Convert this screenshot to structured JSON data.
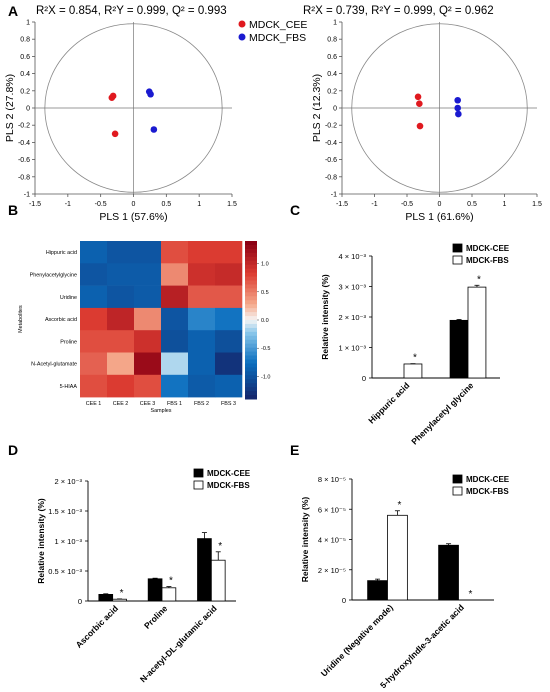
{
  "panels": {
    "A": {
      "letter": "A",
      "title": "R²X = 0.854, R²Y = 0.999, Q² = 0.993"
    },
    "A2": {
      "title": "R²X = 0.739, R²Y = 0.999, Q² = 0.962"
    },
    "B": {
      "letter": "B"
    },
    "C": {
      "letter": "C"
    },
    "D": {
      "letter": "D"
    },
    "E": {
      "letter": "E"
    }
  },
  "colors": {
    "cee": "#e0191f",
    "fbs": "#1a1ad0"
  },
  "chart_data": [
    {
      "id": "pls_left",
      "type": "scatter",
      "xlabel": "PLS 1 (57.6%)",
      "ylabel": "PLS 2 (27.8%)",
      "xlim": [
        -1.5,
        1.5
      ],
      "ylim": [
        -1.0,
        1.0
      ],
      "xticks": [
        "-1.5",
        "-1",
        "-0.5",
        "0",
        "0.5",
        "1",
        "1.5"
      ],
      "yticks": [
        "1",
        "0.8",
        "0.6",
        "0.4",
        "0.2",
        "0",
        "-0.2",
        "-0.4",
        "-0.6",
        "-0.8",
        "-1"
      ],
      "legend": [
        "MDCK_CEE",
        "MDCK_FBS"
      ],
      "series": [
        {
          "name": "MDCK_CEE",
          "points": [
            [
              -0.33,
              0.12
            ],
            [
              -0.31,
              0.14
            ],
            [
              -0.28,
              -0.3
            ]
          ]
        },
        {
          "name": "MDCK_FBS",
          "points": [
            [
              0.24,
              0.19
            ],
            [
              0.26,
              0.16
            ],
            [
              0.31,
              -0.25
            ]
          ]
        }
      ]
    },
    {
      "id": "pls_right",
      "type": "scatter",
      "xlabel": "PLS 1 (61.6%)",
      "ylabel": "PLS 2 (12.3%)",
      "xlim": [
        -1.5,
        1.5
      ],
      "ylim": [
        -1.0,
        1.0
      ],
      "xticks": [
        "-1.5",
        "-1",
        "-0.5",
        "0",
        "0.5",
        "1",
        "1.5"
      ],
      "yticks": [
        "1",
        "0.8",
        "0.6",
        "0.4",
        "0.2",
        "0",
        "-0.2",
        "-0.4",
        "-0.6",
        "-0.8",
        "-1"
      ],
      "series": [
        {
          "name": "MDCK_CEE",
          "points": [
            [
              -0.33,
              0.13
            ],
            [
              -0.31,
              0.05
            ],
            [
              -0.3,
              -0.21
            ]
          ]
        },
        {
          "name": "MDCK_FBS",
          "points": [
            [
              0.28,
              0.09
            ],
            [
              0.28,
              0.0
            ],
            [
              0.29,
              -0.07
            ]
          ]
        }
      ]
    },
    {
      "id": "heatmap",
      "type": "heatmap",
      "rows": [
        "Hippuric acid",
        "Phenylacetylglycine",
        "Uridine",
        "Ascorbic acid",
        "Proline",
        "N-Acetyl-glutamate",
        "5-HIAA"
      ],
      "cols": [
        "CEE 1",
        "CEE 2",
        "CEE 3",
        "FBS 1",
        "FBS 2",
        "FBS 3"
      ],
      "ylabel": "Metabolites",
      "xlabel": "Samples",
      "colorbar_ticks": [
        "1.0",
        "0.5",
        "0.0",
        "-0.5",
        "-1.0"
      ],
      "zlim": [
        -1.4,
        1.4
      ],
      "values": [
        [
          -0.9,
          -1.0,
          -1.0,
          0.75,
          0.85,
          0.85
        ],
        [
          -1.0,
          -0.95,
          -0.95,
          0.45,
          0.95,
          1.0
        ],
        [
          -0.9,
          -1.0,
          -0.95,
          1.1,
          0.7,
          0.7
        ],
        [
          0.85,
          1.05,
          0.45,
          -1.0,
          -0.65,
          -0.75
        ],
        [
          0.75,
          0.75,
          0.95,
          -1.05,
          -0.9,
          -1.05
        ],
        [
          0.65,
          0.3,
          1.3,
          -0.15,
          -0.9,
          -1.3
        ],
        [
          0.75,
          0.85,
          0.75,
          -0.75,
          -0.95,
          -0.9
        ]
      ]
    },
    {
      "id": "bar_C",
      "type": "bar",
      "ylabel": "Relative intensity (%)",
      "yticks": [
        "0",
        "1 × 10⁻³",
        "2 × 10⁻³",
        "3 × 10⁻³",
        "4 × 10⁻³"
      ],
      "ylim": [
        0,
        0.004
      ],
      "categories": [
        "Hippuric acid",
        "Phenylacetyl glycine"
      ],
      "series": [
        {
          "name": "MDCK-CEE",
          "values": [
            0.0,
            0.00189
          ],
          "err": [
            0,
            3e-05
          ]
        },
        {
          "name": "MDCK-FBS",
          "values": [
            0.00046,
            0.00298
          ],
          "err": [
            1e-05,
            6e-05
          ]
        }
      ],
      "sig": [
        [
          "FBS"
        ],
        [
          "FBS"
        ]
      ],
      "sig_mark": "*"
    },
    {
      "id": "bar_D",
      "type": "bar",
      "ylabel": "Relative intensity (%)",
      "yticks": [
        "0",
        "0.5 × 10⁻³",
        "1 × 10⁻³",
        "1.5 × 10⁻³",
        "2 × 10⁻³"
      ],
      "ylim": [
        0,
        0.002
      ],
      "categories": [
        "Ascorbic acid",
        "Proline",
        "N-acetyl-DL-glutamic acid"
      ],
      "series": [
        {
          "name": "MDCK-CEE",
          "values": [
            0.00011,
            0.00037,
            0.00104
          ],
          "err": [
            1e-05,
            1e-05,
            0.0001
          ]
        },
        {
          "name": "MDCK-FBS",
          "values": [
            3e-05,
            0.00022,
            0.00068
          ],
          "err": [
            5e-06,
            2e-05,
            0.00014
          ]
        }
      ],
      "sig": [
        [
          "FBS"
        ],
        [
          "FBS"
        ],
        [
          "FBS"
        ]
      ],
      "sig_mark": "*"
    },
    {
      "id": "bar_E",
      "type": "bar",
      "ylabel": "Relative intensity (%)",
      "yticks": [
        "0",
        "2 × 10⁻⁵",
        "4 × 10⁻⁵",
        "6 × 10⁻⁵",
        "8 × 10⁻⁵"
      ],
      "ylim": [
        0,
        8e-05
      ],
      "categories": [
        "Uridine (Negative mode)",
        "5-hydroxylndle-3-acetic acid"
      ],
      "series": [
        {
          "name": "MDCK-CEE",
          "values": [
            1.28e-05,
            3.62e-05
          ],
          "err": [
            1e-06,
            1e-06
          ]
        },
        {
          "name": "MDCK-FBS",
          "values": [
            5.6e-05,
            0.0
          ],
          "err": [
            3e-06,
            0
          ]
        }
      ],
      "sig": [
        [
          "FBS"
        ],
        [
          "FBS"
        ]
      ],
      "sig_mark": "*"
    }
  ]
}
